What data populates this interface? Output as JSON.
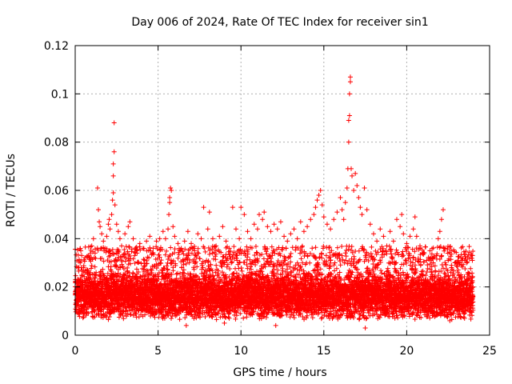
{
  "chart_data": {
    "type": "scatter",
    "title": "Day 006 of 2024, Rate Of TEC Index for receiver sin1",
    "xlabel": "GPS time / hours",
    "ylabel": "ROTI / TECUs",
    "xlim": [
      0,
      25
    ],
    "ylim": [
      0,
      0.12
    ],
    "xticks": [
      0,
      5,
      10,
      15,
      20,
      25
    ],
    "yticks": [
      0,
      0.02,
      0.04,
      0.06,
      0.08,
      0.1,
      0.12
    ],
    "xtick_labels": [
      "0",
      "5",
      "10",
      "15",
      "20",
      "25"
    ],
    "ytick_labels": [
      "0",
      "0.02",
      "0.04",
      "0.06",
      "0.08",
      "0.1",
      "0.12"
    ],
    "grid": true,
    "marker": "+",
    "color": "#ff0000",
    "series": [
      {
        "name": "ROTI",
        "points": [
          [
            0.3,
            0.03
          ],
          [
            0.5,
            0.028
          ],
          [
            0.7,
            0.026
          ],
          [
            0.9,
            0.032
          ],
          [
            1.0,
            0.037
          ],
          [
            1.1,
            0.04
          ],
          [
            1.2,
            0.034
          ],
          [
            1.35,
            0.061
          ],
          [
            1.4,
            0.052
          ],
          [
            1.45,
            0.047
          ],
          [
            1.5,
            0.045
          ],
          [
            1.6,
            0.042
          ],
          [
            1.7,
            0.039
          ],
          [
            1.8,
            0.036
          ],
          [
            1.9,
            0.041
          ],
          [
            2.0,
            0.046
          ],
          [
            2.05,
            0.048
          ],
          [
            2.1,
            0.044
          ],
          [
            2.2,
            0.05
          ],
          [
            2.25,
            0.056
          ],
          [
            2.3,
            0.059
          ],
          [
            2.3,
            0.066
          ],
          [
            2.3,
            0.071
          ],
          [
            2.35,
            0.076
          ],
          [
            2.35,
            0.088
          ],
          [
            2.4,
            0.054
          ],
          [
            2.5,
            0.046
          ],
          [
            2.6,
            0.043
          ],
          [
            2.7,
            0.04
          ],
          [
            2.8,
            0.037
          ],
          [
            3.0,
            0.042
          ],
          [
            3.2,
            0.045
          ],
          [
            3.3,
            0.047
          ],
          [
            3.5,
            0.04
          ],
          [
            3.7,
            0.035
          ],
          [
            3.9,
            0.038
          ],
          [
            4.1,
            0.036
          ],
          [
            4.3,
            0.039
          ],
          [
            4.5,
            0.041
          ],
          [
            4.7,
            0.036
          ],
          [
            4.9,
            0.039
          ],
          [
            5.1,
            0.04
          ],
          [
            5.3,
            0.043
          ],
          [
            5.45,
            0.04
          ],
          [
            5.6,
            0.044
          ],
          [
            5.65,
            0.05
          ],
          [
            5.7,
            0.055
          ],
          [
            5.7,
            0.057
          ],
          [
            5.75,
            0.061
          ],
          [
            5.8,
            0.06
          ],
          [
            5.9,
            0.045
          ],
          [
            6.0,
            0.041
          ],
          [
            6.2,
            0.038
          ],
          [
            6.4,
            0.036
          ],
          [
            6.6,
            0.039
          ],
          [
            6.8,
            0.043
          ],
          [
            7.0,
            0.038
          ],
          [
            7.2,
            0.035
          ],
          [
            7.4,
            0.042
          ],
          [
            7.6,
            0.04
          ],
          [
            7.75,
            0.053
          ],
          [
            8.0,
            0.044
          ],
          [
            8.1,
            0.051
          ],
          [
            8.3,
            0.04
          ],
          [
            8.5,
            0.037
          ],
          [
            8.7,
            0.041
          ],
          [
            8.9,
            0.045
          ],
          [
            9.1,
            0.039
          ],
          [
            9.3,
            0.036
          ],
          [
            9.5,
            0.053
          ],
          [
            9.7,
            0.044
          ],
          [
            9.9,
            0.04
          ],
          [
            10.0,
            0.053
          ],
          [
            10.2,
            0.05
          ],
          [
            10.4,
            0.043
          ],
          [
            10.6,
            0.04
          ],
          [
            10.8,
            0.046
          ],
          [
            11.0,
            0.044
          ],
          [
            11.1,
            0.05
          ],
          [
            11.3,
            0.048
          ],
          [
            11.4,
            0.051
          ],
          [
            11.6,
            0.045
          ],
          [
            11.8,
            0.043
          ],
          [
            12.0,
            0.046
          ],
          [
            12.2,
            0.044
          ],
          [
            12.4,
            0.047
          ],
          [
            12.6,
            0.041
          ],
          [
            12.8,
            0.039
          ],
          [
            13.0,
            0.042
          ],
          [
            13.2,
            0.044
          ],
          [
            13.4,
            0.04
          ],
          [
            13.6,
            0.047
          ],
          [
            13.8,
            0.043
          ],
          [
            14.0,
            0.045
          ],
          [
            14.2,
            0.048
          ],
          [
            14.4,
            0.05
          ],
          [
            14.5,
            0.053
          ],
          [
            14.6,
            0.056
          ],
          [
            14.7,
            0.058
          ],
          [
            14.8,
            0.06
          ],
          [
            14.9,
            0.054
          ],
          [
            15.0,
            0.049
          ],
          [
            15.2,
            0.046
          ],
          [
            15.4,
            0.044
          ],
          [
            15.6,
            0.048
          ],
          [
            15.8,
            0.051
          ],
          [
            16.0,
            0.057
          ],
          [
            16.1,
            0.052
          ],
          [
            16.2,
            0.048
          ],
          [
            16.3,
            0.055
          ],
          [
            16.4,
            0.061
          ],
          [
            16.45,
            0.069
          ],
          [
            16.5,
            0.08
          ],
          [
            16.5,
            0.089
          ],
          [
            16.55,
            0.091
          ],
          [
            16.55,
            0.1
          ],
          [
            16.6,
            0.105
          ],
          [
            16.6,
            0.107
          ],
          [
            16.65,
            0.069
          ],
          [
            16.7,
            0.066
          ],
          [
            16.8,
            0.06
          ],
          [
            16.9,
            0.067
          ],
          [
            17.0,
            0.062
          ],
          [
            17.1,
            0.057
          ],
          [
            17.2,
            0.053
          ],
          [
            17.3,
            0.05
          ],
          [
            17.45,
            0.061
          ],
          [
            17.6,
            0.052
          ],
          [
            17.8,
            0.046
          ],
          [
            18.0,
            0.042
          ],
          [
            18.2,
            0.039
          ],
          [
            18.4,
            0.044
          ],
          [
            18.6,
            0.041
          ],
          [
            18.8,
            0.037
          ],
          [
            19.0,
            0.043
          ],
          [
            19.2,
            0.039
          ],
          [
            19.4,
            0.048
          ],
          [
            19.6,
            0.045
          ],
          [
            19.7,
            0.05
          ],
          [
            19.8,
            0.042
          ],
          [
            20.0,
            0.038
          ],
          [
            20.2,
            0.041
          ],
          [
            20.4,
            0.044
          ],
          [
            20.5,
            0.049
          ],
          [
            20.6,
            0.041
          ],
          [
            20.8,
            0.037
          ],
          [
            21.0,
            0.034
          ],
          [
            21.2,
            0.031
          ],
          [
            21.4,
            0.035
          ],
          [
            21.6,
            0.03
          ],
          [
            21.8,
            0.033
          ],
          [
            21.9,
            0.04
          ],
          [
            22.0,
            0.043
          ],
          [
            22.1,
            0.048
          ],
          [
            22.2,
            0.052
          ],
          [
            22.3,
            0.036
          ],
          [
            22.5,
            0.031
          ],
          [
            22.7,
            0.028
          ],
          [
            22.9,
            0.03
          ],
          [
            23.1,
            0.027
          ],
          [
            23.3,
            0.029
          ],
          [
            23.5,
            0.031
          ],
          [
            23.7,
            0.026
          ],
          [
            23.9,
            0.022
          ],
          [
            24.0,
            0.02
          ],
          [
            17.5,
            0.003
          ],
          [
            9.0,
            0.005
          ],
          [
            12.1,
            0.004
          ],
          [
            22.6,
            0.006
          ],
          [
            6.7,
            0.004
          ]
        ],
        "dense_band": {
          "description": "continuous cloud of '+' markers covering the full day",
          "x_range": [
            0,
            24
          ],
          "typical_range": [
            0.008,
            0.025
          ]
        }
      }
    ]
  }
}
